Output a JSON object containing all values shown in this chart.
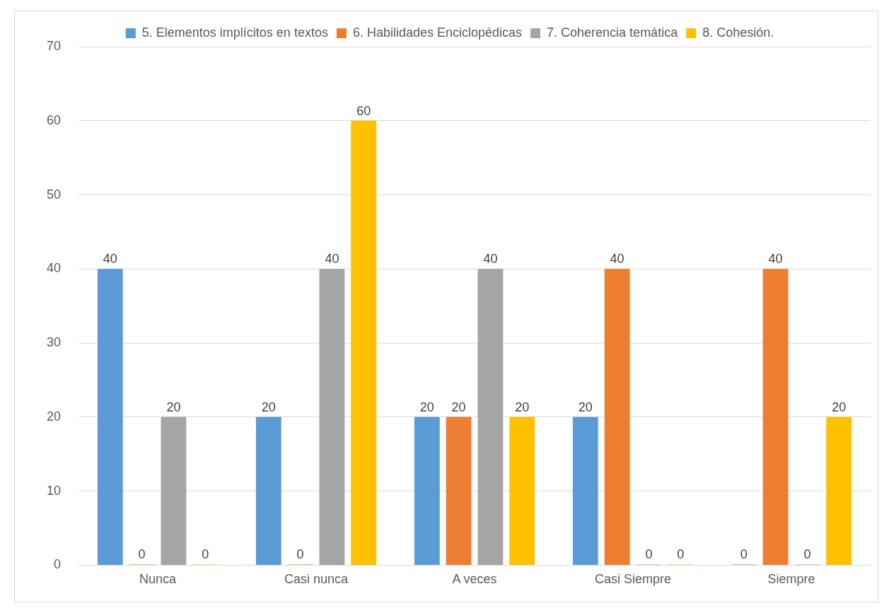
{
  "chart_data": {
    "type": "bar",
    "categories": [
      "Nunca",
      "Casi nunca",
      "A veces",
      "Casi Siempre",
      "Siempre"
    ],
    "series": [
      {
        "name": "5. Elementos implícitos en textos",
        "color": "#5b9bd5",
        "values": [
          40,
          20,
          20,
          20,
          0
        ]
      },
      {
        "name": "6. Habilidades Enciclopédicas",
        "color": "#ed7d31",
        "values": [
          0,
          0,
          20,
          40,
          40
        ]
      },
      {
        "name": "7. Coherencia temática",
        "color": "#a5a5a5",
        "values": [
          20,
          40,
          40,
          0,
          0
        ]
      },
      {
        "name": "8. Cohesión.",
        "color": "#ffc000",
        "values": [
          0,
          60,
          20,
          0,
          20
        ]
      }
    ],
    "ylim": [
      0,
      70
    ],
    "yticks": [
      0,
      10,
      20,
      30,
      40,
      50,
      60,
      70
    ],
    "grid": "y",
    "legend": "top",
    "data_labels": true
  }
}
